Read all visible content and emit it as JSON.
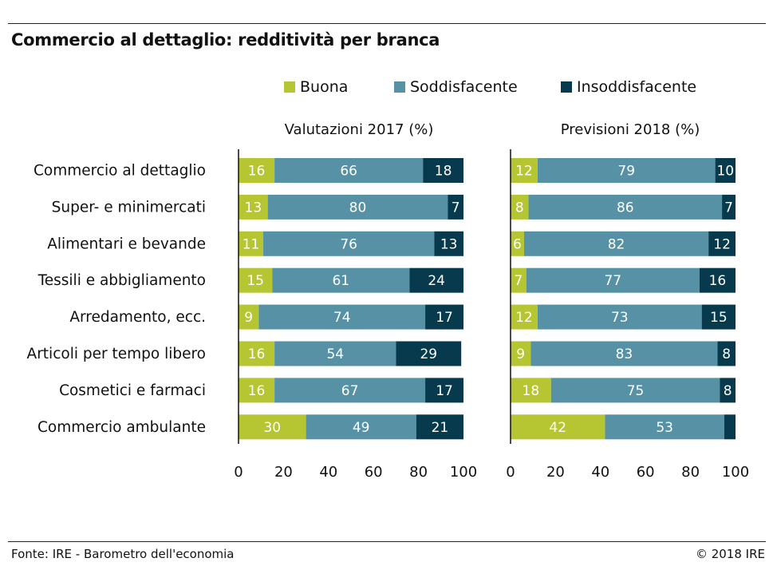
{
  "title": "Commercio al dettaglio: redditività per branca",
  "footer": {
    "source": "Fonte: IRE - Barometro dell'economia",
    "copyright": "© 2018 IRE"
  },
  "colors": {
    "Buona": "#b5c632",
    "Soddisfacente": "#5691a5",
    "Insoddisfacente": "#073a4d"
  },
  "chart_data": [
    {
      "type": "bar",
      "orientation": "horizontal",
      "stacked": true,
      "title": "Valutazioni 2017 (%)",
      "categories": [
        "Commercio al dettaglio",
        "Super- e minimercati",
        "Alimentari e bevande",
        "Tessili e abbigliamento",
        "Arredamento, ecc.",
        "Articoli per tempo libero",
        "Cosmetici e farmaci",
        "Commercio ambulante"
      ],
      "series": [
        {
          "name": "Buona",
          "values": [
            16,
            13,
            11,
            15,
            9,
            16,
            16,
            30
          ]
        },
        {
          "name": "Soddisfacente",
          "values": [
            66,
            80,
            76,
            61,
            74,
            54,
            67,
            49
          ]
        },
        {
          "name": "Insoddisfacente",
          "values": [
            18,
            7,
            13,
            24,
            17,
            29,
            17,
            21
          ]
        }
      ],
      "xlim": [
        0,
        100
      ],
      "xticks": [
        0,
        20,
        40,
        60,
        80,
        100
      ],
      "legend": "top"
    },
    {
      "type": "bar",
      "orientation": "horizontal",
      "stacked": true,
      "title": "Previsioni 2018 (%)",
      "categories": [
        "Commercio al dettaglio",
        "Super- e minimercati",
        "Alimentari e bevande",
        "Tessili e abbigliamento",
        "Arredamento, ecc.",
        "Articoli per tempo libero",
        "Cosmetici e farmaci",
        "Commercio ambulante"
      ],
      "series": [
        {
          "name": "Buona",
          "values": [
            12,
            8,
            6,
            7,
            12,
            9,
            18,
            42
          ]
        },
        {
          "name": "Soddisfacente",
          "values": [
            79,
            86,
            82,
            77,
            73,
            83,
            75,
            53
          ]
        },
        {
          "name": "Insoddisfacente",
          "values": [
            10,
            7,
            12,
            16,
            15,
            8,
            8,
            5
          ]
        }
      ],
      "series_labels_shown": {
        "Buona": [
          12,
          8,
          6,
          7,
          12,
          9,
          18,
          42
        ],
        "Soddisfacente": [
          79,
          86,
          82,
          77,
          73,
          83,
          75,
          53
        ],
        "Insoddisfacente": [
          10,
          7,
          12,
          16,
          15,
          8,
          8,
          null
        ]
      },
      "xlim": [
        0,
        100
      ],
      "xticks": [
        0,
        20,
        40,
        60,
        80,
        100
      ],
      "legend": "top"
    }
  ]
}
